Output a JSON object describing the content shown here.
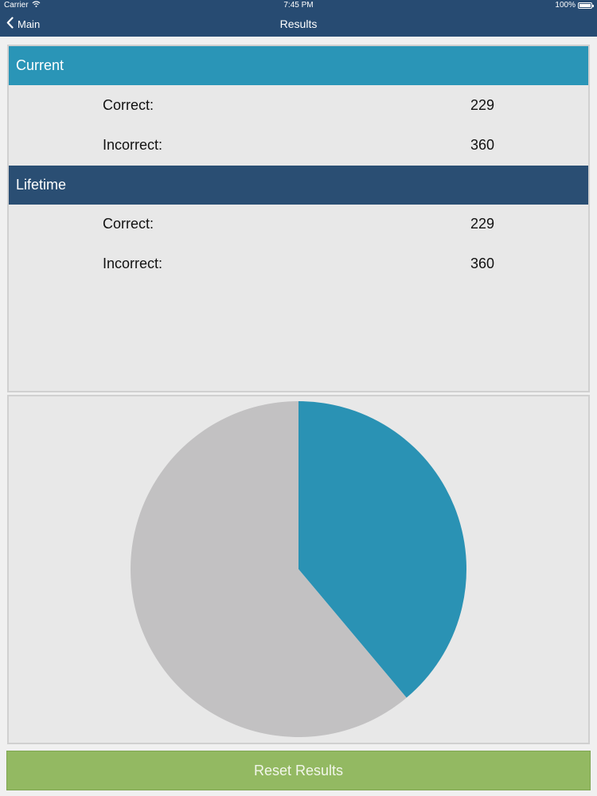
{
  "status_bar": {
    "carrier": "Carrier",
    "time": "7:45 PM",
    "battery": "100%"
  },
  "nav": {
    "back_label": "Main",
    "title": "Results"
  },
  "sections": {
    "current": {
      "title": "Current",
      "correct_label": "Correct:",
      "correct_value": "229",
      "incorrect_label": "Incorrect:",
      "incorrect_value": "360"
    },
    "lifetime": {
      "title": "Lifetime",
      "correct_label": "Correct:",
      "correct_value": "229",
      "incorrect_label": "Incorrect:",
      "incorrect_value": "360"
    }
  },
  "colors": {
    "nav_bar": "#274b72",
    "current_header": "#2a95b7",
    "lifetime_header": "#2a4e73",
    "correct_slice": "#2a92b4",
    "incorrect_slice": "#c2c1c2",
    "reset_button": "#93b962"
  },
  "chart_data": {
    "type": "pie",
    "categories": [
      "Correct",
      "Incorrect"
    ],
    "values": [
      229,
      360
    ],
    "colors": [
      "#2a92b4",
      "#c2c1c2"
    ],
    "start": "12 o'clock",
    "direction": "clockwise"
  },
  "actions": {
    "reset_label": "Reset Results"
  },
  "icons": {
    "wifi": "wifi-icon",
    "battery": "battery-icon",
    "back": "chevron-left-icon"
  }
}
